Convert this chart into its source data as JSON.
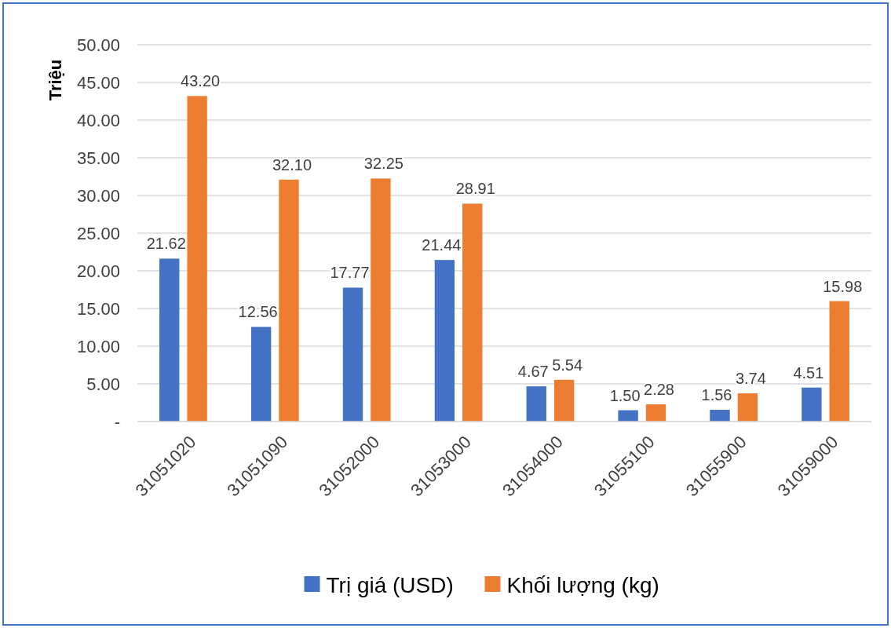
{
  "chart_data": {
    "type": "bar",
    "ylabel": "Triệu",
    "categories": [
      "31051020",
      "31051090",
      "31052000",
      "31053000",
      "31054000",
      "31055100",
      "31055900",
      "31059000"
    ],
    "series": [
      {
        "name": "Trị giá (USD)",
        "color": "#4472c4",
        "values": [
          21.62,
          12.56,
          17.77,
          21.44,
          4.67,
          1.5,
          1.56,
          4.51
        ],
        "value_labels": [
          "21.62",
          "12.56",
          "17.77",
          "21.44",
          "4.67",
          "1.50",
          "1.56",
          "4.51"
        ]
      },
      {
        "name": "Khối lượng  (kg)",
        "color": "#ed7d31",
        "values": [
          43.2,
          32.1,
          32.25,
          28.91,
          5.54,
          2.28,
          3.74,
          15.98
        ],
        "value_labels": [
          "43.20",
          "32.10",
          "32.25",
          "28.91",
          "5.54",
          "2.28",
          "3.74",
          "15.98"
        ]
      }
    ],
    "ylim": [
      0,
      50
    ],
    "yticks": [
      {
        "value": 0,
        "label": "-"
      },
      {
        "value": 5,
        "label": "5.00"
      },
      {
        "value": 10,
        "label": "10.00"
      },
      {
        "value": 15,
        "label": "15.00"
      },
      {
        "value": 20,
        "label": "20.00"
      },
      {
        "value": 25,
        "label": "25.00"
      },
      {
        "value": 30,
        "label": "30.00"
      },
      {
        "value": 35,
        "label": "35.00"
      },
      {
        "value": 40,
        "label": "40.00"
      },
      {
        "value": 45,
        "label": "45.00"
      },
      {
        "value": 50,
        "label": "50.00"
      }
    ],
    "grid": "y",
    "legend": "bottom"
  }
}
